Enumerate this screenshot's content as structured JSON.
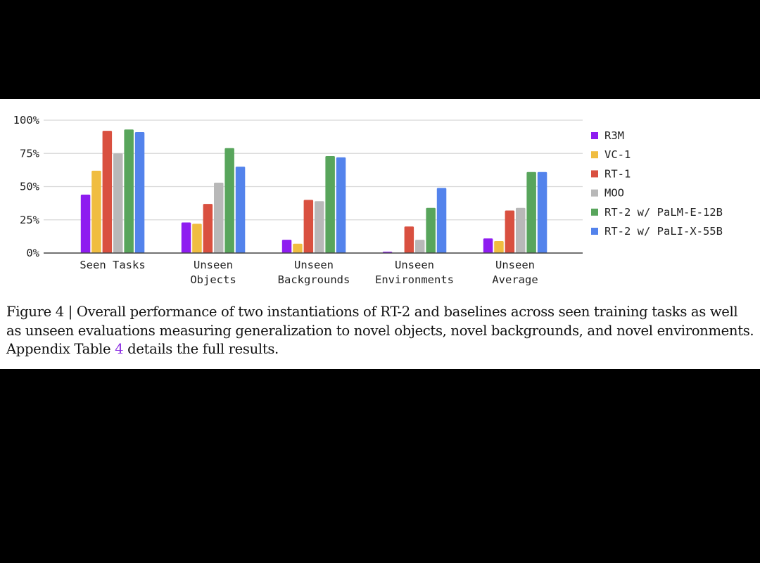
{
  "chart_data": {
    "type": "bar",
    "categories": [
      [
        "Seen Tasks"
      ],
      [
        "Unseen",
        "Objects"
      ],
      [
        "Unseen",
        "Backgrounds"
      ],
      [
        "Unseen",
        "Environments"
      ],
      [
        "Unseen",
        "Average"
      ]
    ],
    "series": [
      {
        "name": "R3M",
        "color": "#8e1cf0",
        "values": [
          44,
          23,
          10,
          1,
          11
        ]
      },
      {
        "name": "VC-1",
        "color": "#f0bd40",
        "values": [
          62,
          22,
          7,
          0,
          9
        ]
      },
      {
        "name": "RT-1",
        "color": "#d95040",
        "values": [
          92,
          37,
          40,
          20,
          32
        ]
      },
      {
        "name": "MOO",
        "color": "#b8b8b8",
        "values": [
          75,
          53,
          39,
          10,
          34
        ]
      },
      {
        "name": "RT-2 w/ PaLM-E-12B",
        "color": "#58a55c",
        "values": [
          93,
          79,
          73,
          34,
          61
        ]
      },
      {
        "name": "RT-2 w/ PaLI-X-55B",
        "color": "#5383ec",
        "values": [
          91,
          65,
          72,
          49,
          61
        ]
      }
    ],
    "yticks": [
      "0%",
      "25%",
      "50%",
      "75%",
      "100%"
    ],
    "ylim": [
      0,
      100
    ],
    "grid": true,
    "legend": "right"
  },
  "caption": {
    "text_before": "Figure 4 | Overall performance of two instantiations of RT-2 and baselines across seen training tasks as well as unseen evaluations measuring generalization to novel objects, novel backgrounds, and novel environments. Appendix Table ",
    "ref": "4",
    "text_after": " details the full results."
  }
}
